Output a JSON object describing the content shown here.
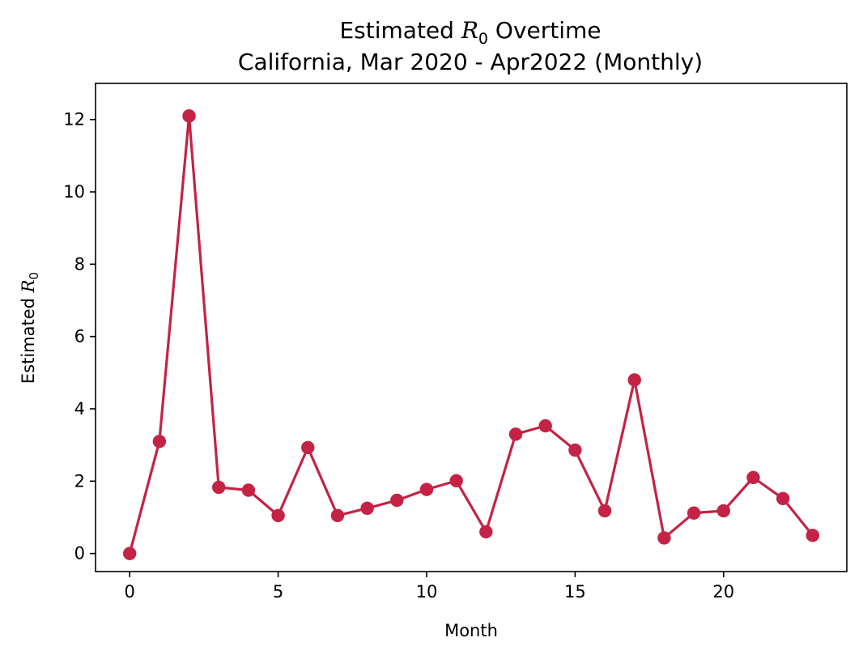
{
  "chart_data": {
    "type": "line",
    "title": {
      "line1_prefix": "Estimated ",
      "line1_symbol": "R",
      "line1_subscript": "0",
      "line1_suffix": " Overtime",
      "line2": "California, Mar 2020 - Apr2022 (Monthly)"
    },
    "xlabel": "Month",
    "ylabel": {
      "prefix": "Estimated ",
      "symbol": "R",
      "subscript": "0"
    },
    "xlim": [
      -1.15,
      24.15
    ],
    "ylim": [
      -0.5,
      13.0
    ],
    "xticks": [
      0,
      5,
      10,
      15,
      20
    ],
    "xtick_labels": [
      "0",
      "5",
      "10",
      "15",
      "20"
    ],
    "yticks": [
      0,
      2,
      4,
      6,
      8,
      10,
      12
    ],
    "ytick_labels": [
      "0",
      "2",
      "4",
      "6",
      "8",
      "10",
      "12"
    ],
    "grid": false,
    "legend": "none",
    "series": [
      {
        "color": "#c42345",
        "marker": "circle",
        "x": [
          0,
          1,
          2,
          3,
          4,
          5,
          6,
          7,
          8,
          9,
          10,
          11,
          12,
          13,
          14,
          15,
          16,
          17,
          18,
          19,
          20,
          21,
          22,
          23
        ],
        "y": [
          0.0,
          3.1,
          12.1,
          1.83,
          1.75,
          1.05,
          2.93,
          1.05,
          1.25,
          1.47,
          1.77,
          2.01,
          0.6,
          3.3,
          3.53,
          2.86,
          1.18,
          4.8,
          0.43,
          1.12,
          1.18,
          2.1,
          1.52,
          0.5
        ]
      }
    ]
  }
}
